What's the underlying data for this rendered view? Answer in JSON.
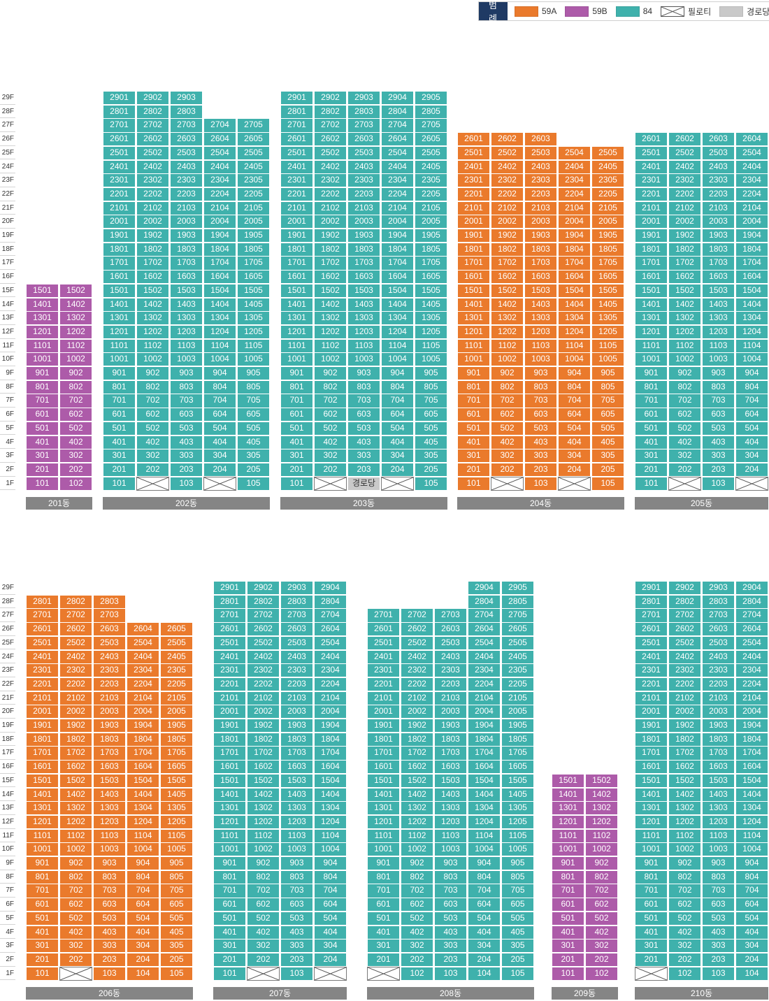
{
  "legend": {
    "title": "범례",
    "items": [
      {
        "type": "59A",
        "label": "59A",
        "color": "#ea7a2c"
      },
      {
        "type": "59B",
        "label": "59B",
        "color": "#ad5ba9"
      },
      {
        "type": "84",
        "label": "84",
        "color": "#3fb1ac"
      },
      {
        "type": "pilo",
        "label": "필로티",
        "icon": "pilotis-cross-icon"
      },
      {
        "type": "senior",
        "label": "경로당",
        "color": "#c9c9c9"
      }
    ]
  },
  "colors": {
    "59A": "#ea7a2c",
    "59B": "#ad5ba9",
    "84": "#3fb1ac",
    "senior": "#c9c9c9",
    "pilo_line": "#555555"
  },
  "senior_label": "경로당",
  "floors": [
    "1F",
    "2F",
    "3F",
    "4F",
    "5F",
    "6F",
    "7F",
    "8F",
    "9F",
    "10F",
    "11F",
    "12F",
    "13F",
    "14F",
    "15F",
    "16F",
    "17F",
    "18F",
    "19F",
    "20F",
    "21F",
    "22F",
    "23F",
    "24F",
    "25F",
    "26F",
    "27F",
    "28F",
    "29F"
  ],
  "sections": [
    {
      "buildings": [
        {
          "name": "201동",
          "columns": [
            {
              "line": 1,
              "type": "59B",
              "top": 15,
              "ground": "unit"
            },
            {
              "line": 2,
              "type": "59B",
              "top": 15,
              "ground": "unit"
            }
          ]
        },
        {
          "name": "202동",
          "columns": [
            {
              "line": 1,
              "type": "84",
              "top": 29,
              "ground": "unit"
            },
            {
              "line": 2,
              "type": "84",
              "top": 29,
              "ground": "pilo"
            },
            {
              "line": 3,
              "type": "84",
              "top": 29,
              "ground": "unit"
            },
            {
              "line": 4,
              "type": "84",
              "top": 27,
              "ground": "pilo"
            },
            {
              "line": 5,
              "type": "84",
              "top": 27,
              "ground": "unit"
            }
          ]
        },
        {
          "name": "203동",
          "columns": [
            {
              "line": 1,
              "type": "84",
              "top": 29,
              "ground": "unit"
            },
            {
              "line": 2,
              "type": "84",
              "top": 29,
              "ground": "pilo"
            },
            {
              "line": 3,
              "type": "84",
              "top": 29,
              "ground": "senior"
            },
            {
              "line": 4,
              "type": "84",
              "top": 29,
              "ground": "pilo"
            },
            {
              "line": 5,
              "type": "84",
              "top": 29,
              "ground": "unit"
            }
          ]
        },
        {
          "name": "204동",
          "columns": [
            {
              "line": 1,
              "type": "59A",
              "top": 26,
              "ground": "unit"
            },
            {
              "line": 2,
              "type": "59A",
              "top": 26,
              "ground": "pilo"
            },
            {
              "line": 3,
              "type": "59A",
              "top": 26,
              "ground": "unit"
            },
            {
              "line": 4,
              "type": "59A",
              "top": 25,
              "ground": "pilo"
            },
            {
              "line": 5,
              "type": "59A",
              "top": 25,
              "ground": "unit"
            }
          ]
        },
        {
          "name": "205동",
          "columns": [
            {
              "line": 1,
              "type": "84",
              "top": 26,
              "ground": "unit"
            },
            {
              "line": 2,
              "type": "84",
              "top": 26,
              "ground": "pilo"
            },
            {
              "line": 3,
              "type": "84",
              "top": 26,
              "ground": "unit"
            },
            {
              "line": 4,
              "type": "84",
              "top": 26,
              "ground": "pilo"
            }
          ]
        }
      ]
    },
    {
      "buildings": [
        {
          "name": "206동",
          "columns": [
            {
              "line": 1,
              "type": "59A",
              "top": 28,
              "ground": "unit"
            },
            {
              "line": 2,
              "type": "59A",
              "top": 28,
              "ground": "pilo"
            },
            {
              "line": 3,
              "type": "59A",
              "top": 28,
              "ground": "unit"
            },
            {
              "line": 4,
              "type": "59A",
              "top": 26,
              "ground": "unit"
            },
            {
              "line": 5,
              "type": "59A",
              "top": 26,
              "ground": "unit"
            }
          ]
        },
        {
          "name": "207동",
          "columns": [
            {
              "line": 1,
              "type": "84",
              "top": 29,
              "ground": "unit"
            },
            {
              "line": 2,
              "type": "84",
              "top": 29,
              "ground": "pilo"
            },
            {
              "line": 3,
              "type": "84",
              "top": 29,
              "ground": "unit"
            },
            {
              "line": 4,
              "type": "84",
              "top": 29,
              "ground": "pilo"
            }
          ]
        },
        {
          "name": "208동",
          "columns": [
            {
              "line": 1,
              "type": "84",
              "top": 27,
              "ground": "pilo"
            },
            {
              "line": 2,
              "type": "84",
              "top": 27,
              "ground": "unit"
            },
            {
              "line": 3,
              "type": "84",
              "top": 27,
              "ground": "unit"
            },
            {
              "line": 4,
              "type": "84",
              "top": 29,
              "ground": "unit"
            },
            {
              "line": 5,
              "type": "84",
              "top": 29,
              "ground": "unit"
            }
          ]
        },
        {
          "name": "209동",
          "columns": [
            {
              "line": 1,
              "type": "59B",
              "top": 15,
              "ground": "unit"
            },
            {
              "line": 2,
              "type": "59B",
              "top": 15,
              "ground": "unit"
            }
          ]
        },
        {
          "name": "210동",
          "columns": [
            {
              "line": 1,
              "type": "84",
              "top": 29,
              "ground": "pilo"
            },
            {
              "line": 2,
              "type": "84",
              "top": 29,
              "ground": "unit"
            },
            {
              "line": 3,
              "type": "84",
              "top": 29,
              "ground": "unit"
            },
            {
              "line": 4,
              "type": "84",
              "top": 29,
              "ground": "unit"
            }
          ]
        }
      ]
    }
  ]
}
